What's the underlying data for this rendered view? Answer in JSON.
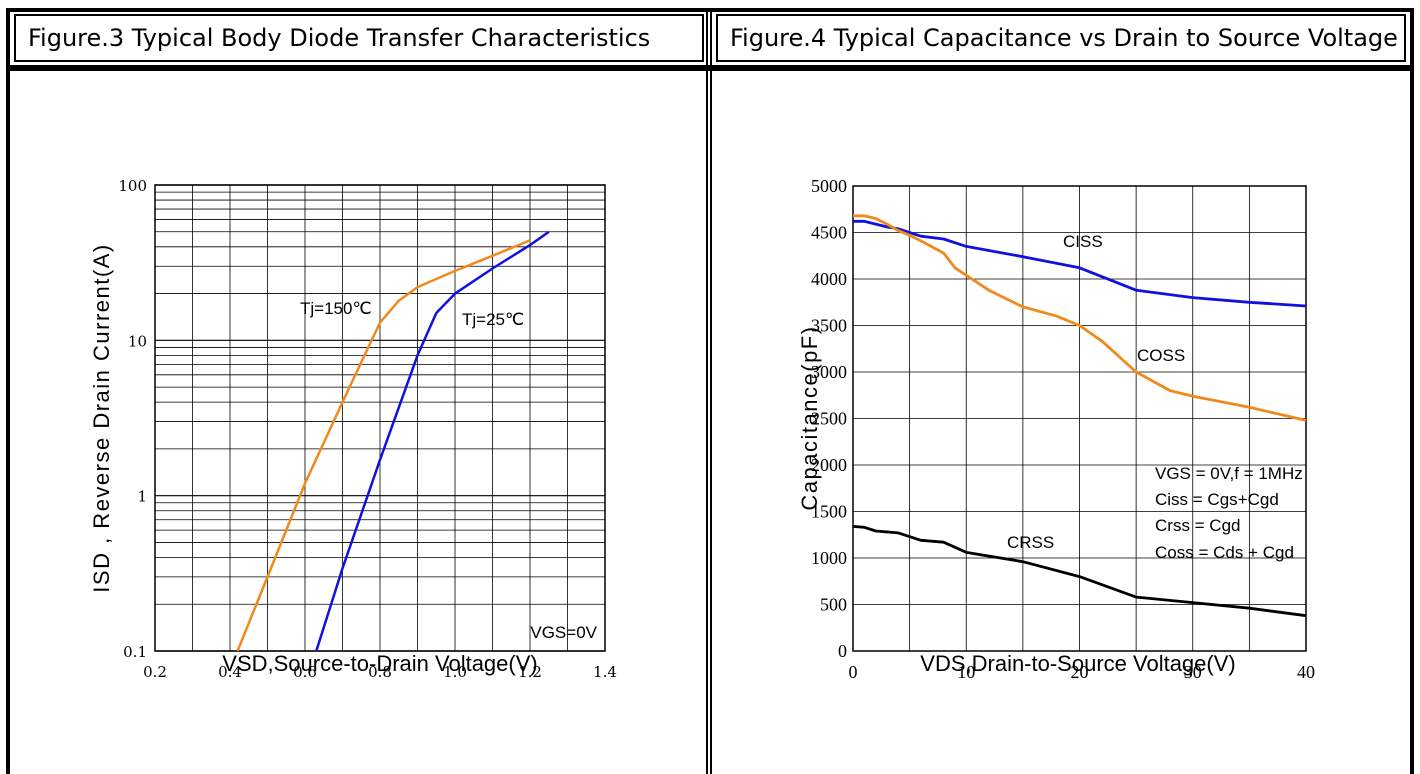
{
  "header": {
    "left_title": "Figure.3 Typical Body Diode Transfer Characteristics",
    "right_title": "Figure.4 Typical Capacitance vs Drain to Source Voltage"
  },
  "colors": {
    "orange": "#f08a1c",
    "blue": "#1010e0",
    "black": "#000000"
  },
  "chart_data": [
    {
      "type": "line",
      "title": "Figure.3 Typical Body Diode Transfer Characteristics",
      "xlabel": "VSD,Source-to-Drain Voltage(V)",
      "ylabel": "ISD , Reverse Drain Current(A)",
      "xlim": [
        0.2,
        1.4
      ],
      "ylim": [
        0.1,
        100
      ],
      "yscale": "log",
      "grid": true,
      "x_ticks": [
        "0.2",
        "0.4",
        "0.6",
        "0.8",
        "1.0",
        "1.2",
        "1.4"
      ],
      "y_ticks": [
        "0.1",
        "1",
        "10",
        "100"
      ],
      "annotations": [
        "VGS=0V"
      ],
      "series": [
        {
          "name": "Tj=150℃",
          "color": "#f08a1c",
          "x": [
            0.42,
            0.5,
            0.6,
            0.7,
            0.8,
            0.85,
            0.9,
            1.0,
            1.1,
            1.2
          ],
          "y": [
            0.1,
            0.3,
            1.2,
            4.0,
            13.0,
            18.0,
            22.0,
            28.0,
            35.0,
            44.0
          ]
        },
        {
          "name": "Tj=25℃",
          "color": "#1010e0",
          "x": [
            0.63,
            0.7,
            0.8,
            0.9,
            0.95,
            1.0,
            1.1,
            1.2,
            1.25
          ],
          "y": [
            0.1,
            0.34,
            1.7,
            8.0,
            15.0,
            20.0,
            29.0,
            41.0,
            50.0
          ]
        }
      ]
    },
    {
      "type": "line",
      "title": "Figure.4 Typical Capacitance vs Drain to Source Voltage",
      "xlabel": "VDS,Drain-to-Source Voltage(V)",
      "ylabel": "Capacitance(pF)",
      "xlim": [
        0,
        40
      ],
      "ylim": [
        0,
        5000
      ],
      "grid": true,
      "x_ticks": [
        "0",
        "10",
        "20",
        "30",
        "40"
      ],
      "y_ticks": [
        "0",
        "500",
        "1000",
        "1500",
        "2000",
        "2500",
        "3000",
        "3500",
        "4000",
        "4500",
        "5000"
      ],
      "annotations": [
        "VGS = 0V,f = 1MHz",
        "Ciss = Cgs+Cgd",
        "Crss = Cgd",
        "Coss = Cds + Cgd"
      ],
      "series": [
        {
          "name": "CISS",
          "color": "#1010e0",
          "x": [
            0,
            1,
            2,
            3,
            4,
            5,
            6,
            8,
            10,
            15,
            20,
            25,
            30,
            35,
            40
          ],
          "y": [
            4620,
            4620,
            4590,
            4560,
            4540,
            4500,
            4460,
            4430,
            4350,
            4240,
            4120,
            3880,
            3800,
            3750,
            3710
          ]
        },
        {
          "name": "COSS",
          "color": "#f08a1c",
          "x": [
            0,
            1,
            2,
            3,
            4,
            5,
            6,
            8,
            9,
            10,
            12,
            15,
            18,
            20,
            22,
            25,
            28,
            30,
            35,
            40
          ],
          "y": [
            4680,
            4680,
            4650,
            4590,
            4520,
            4470,
            4410,
            4280,
            4120,
            4040,
            3880,
            3700,
            3600,
            3500,
            3330,
            3000,
            2800,
            2740,
            2620,
            2480
          ]
        },
        {
          "name": "CRSS",
          "color": "#000000",
          "x": [
            0,
            1,
            2,
            4,
            6,
            8,
            10,
            15,
            20,
            25,
            30,
            35,
            40
          ],
          "y": [
            1340,
            1330,
            1290,
            1270,
            1190,
            1170,
            1060,
            960,
            800,
            580,
            520,
            460,
            380
          ]
        }
      ]
    }
  ]
}
